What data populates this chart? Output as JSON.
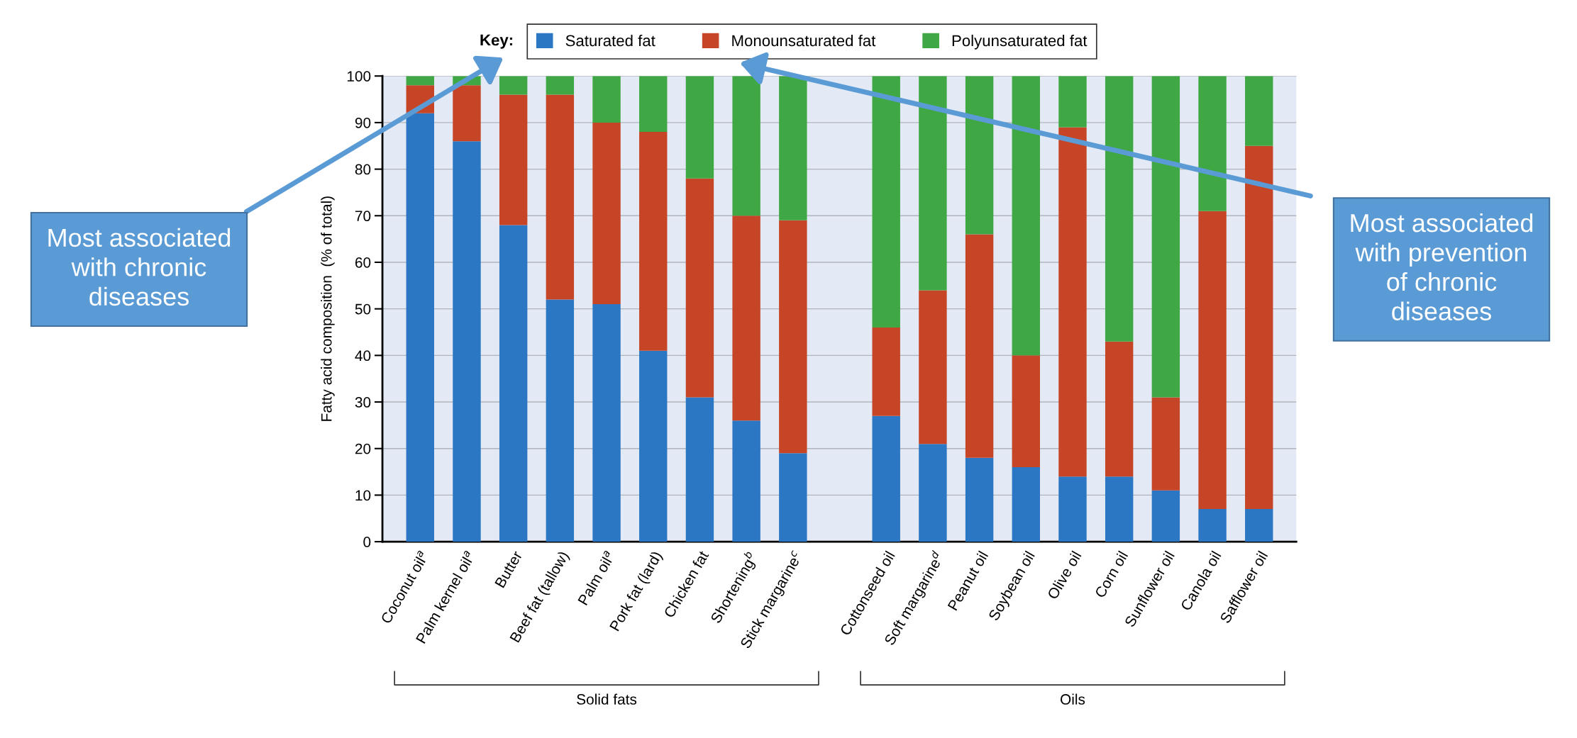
{
  "chart_data": {
    "type": "bar",
    "stacked": true,
    "ylabel": "Fatty acid composition  (% of total)",
    "legend_title": "Key:",
    "categories": [
      "Coconut oil$^{a}$",
      "Palm kernel oil$^{a}$",
      "Butter",
      "Beef fat (tallow)",
      "Palm oil$^{a}$",
      "Pork fat (lard)",
      "Chicken fat",
      "Shortening$^{b}$",
      "Stick margarine$^{c}$",
      null,
      "Cottonseed oil",
      "Soft margarine$^{d}$",
      "Peanut oil",
      "Soybean oil",
      "Olive oil",
      "Corn oil",
      "Sunflower oil",
      "Canola oil",
      "Safflower oil"
    ],
    "series": [
      {
        "name": "Saturated fat",
        "color": "#2c77c3",
        "values": [
          92,
          86,
          68,
          52,
          51,
          41,
          31,
          26,
          19,
          null,
          27,
          21,
          18,
          16,
          14,
          14,
          11,
          7,
          7
        ]
      },
      {
        "name": "Monounsaturated fat",
        "color": "#c64527",
        "values": [
          6,
          12,
          28,
          44,
          39,
          47,
          47,
          44,
          50,
          null,
          19,
          33,
          48,
          24,
          75,
          29,
          20,
          64,
          78
        ]
      },
      {
        "name": "Polyunsaturated fat",
        "color": "#3fa844",
        "values": [
          2,
          2,
          4,
          4,
          10,
          12,
          22,
          30,
          31,
          null,
          54,
          46,
          34,
          60,
          11,
          57,
          69,
          29,
          15
        ]
      }
    ],
    "ylim": [
      0,
      100
    ],
    "yticks": [
      0,
      10,
      20,
      30,
      40,
      50,
      60,
      70,
      80,
      90,
      100
    ],
    "grid": "y",
    "legend": "top",
    "annotations": [
      "Most associated with chronic diseases",
      "Most associated with prevention of chronic diseases",
      "Solid fats",
      "Oils"
    ]
  }
}
